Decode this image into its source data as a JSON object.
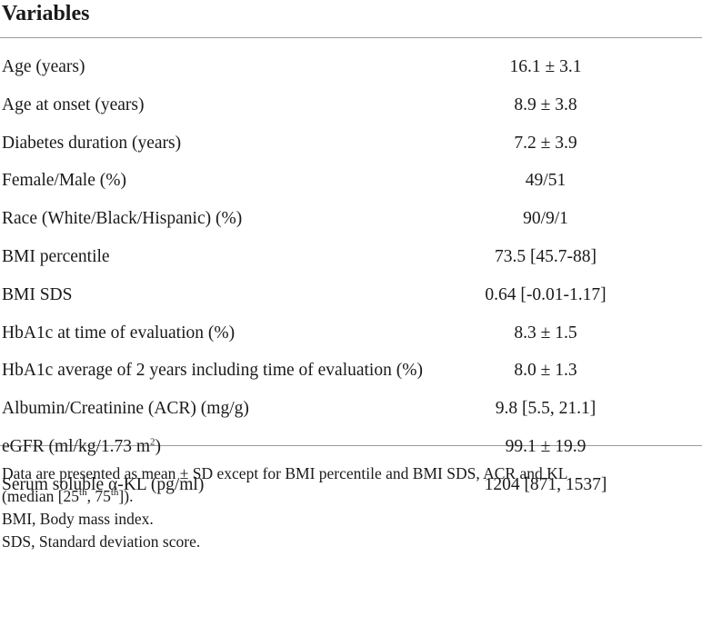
{
  "table": {
    "header": "Variables",
    "rows": [
      {
        "label": "Age (years)",
        "value": "16.1 ± 3.1"
      },
      {
        "label": "Age at onset (years)",
        "value": "8.9 ± 3.8"
      },
      {
        "label": "Diabetes duration (years)",
        "value": "7.2 ± 3.9"
      },
      {
        "label": "Female/Male (%)",
        "value": "49/51"
      },
      {
        "label": "Race (White/Black/Hispanic) (%)",
        "value": "90/9/1"
      },
      {
        "label": "BMI percentile",
        "value": "73.5 [45.7-88]"
      },
      {
        "label": "BMI SDS",
        "value": "0.64 [-0.01-1.17]"
      },
      {
        "label": "HbA1c at time of evaluation (%)",
        "value": "8.3 ± 1.5"
      },
      {
        "label": "HbA1c average of 2 years including time of evaluation (%)",
        "value": "8.0 ± 1.3"
      },
      {
        "label": "Albumin/Creatinine (ACR) (mg/g)",
        "value": "9.8 [5.5, 21.1]"
      },
      {
        "label_main": "eGFR (ml/kg/1.73 m",
        "label_sup": "2",
        "label_end": ")",
        "value": "99.1 ± 19.9"
      },
      {
        "label": "Serum soluble α-KL (pg/ml)",
        "value": "1204 [871, 1537]"
      }
    ]
  },
  "footnotes": {
    "data_note_line1": "Data are presented as mean ± SD except for BMI percentile and BMI SDS, ACR and KL",
    "data_note_line2_a": "(median [25",
    "data_note_line2_sup1": "th",
    "data_note_line2_b": ", 75",
    "data_note_line2_sup2": "th",
    "data_note_line2_c": "]).",
    "bmi": "BMI, Body mass index.",
    "sds": "SDS, Standard deviation score."
  }
}
